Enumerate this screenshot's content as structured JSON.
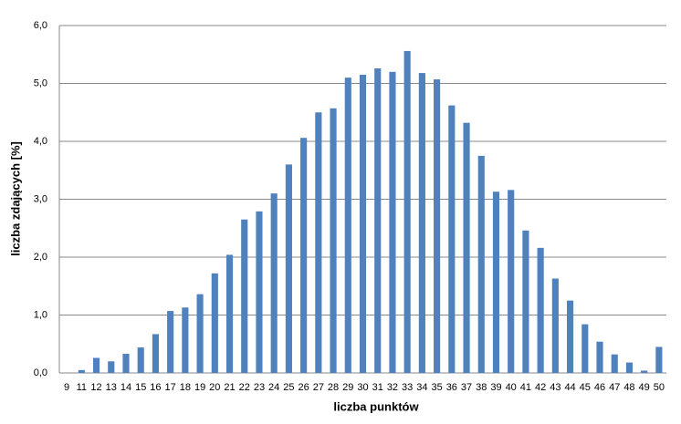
{
  "chart_data": {
    "type": "bar",
    "x_label": "liczba punktów",
    "y_label": "liczba zdających [%]",
    "categories": [
      9,
      11,
      12,
      13,
      14,
      15,
      16,
      17,
      18,
      19,
      20,
      21,
      22,
      23,
      24,
      25,
      26,
      27,
      28,
      29,
      30,
      31,
      32,
      33,
      34,
      35,
      36,
      37,
      38,
      39,
      40,
      41,
      42,
      43,
      44,
      45,
      46,
      47,
      48,
      49,
      50
    ],
    "values": [
      0,
      0.05,
      0.26,
      0.2,
      0.33,
      0.44,
      0.67,
      1.07,
      1.13,
      1.36,
      1.72,
      2.04,
      2.65,
      2.79,
      3.1,
      3.6,
      4.06,
      4.5,
      4.57,
      5.1,
      5.15,
      5.26,
      5.2,
      5.56,
      5.18,
      5.07,
      4.62,
      4.32,
      3.75,
      3.13,
      3.16,
      2.46,
      2.16,
      1.63,
      1.25,
      0.84,
      0.54,
      0.32,
      0.18,
      0.04,
      0.45
    ],
    "color": "#4f81bd",
    "ylim": [
      0,
      6
    ],
    "yticks": [
      {
        "value": 0,
        "label": "0,0"
      },
      {
        "value": 1,
        "label": "1,0"
      },
      {
        "value": 2,
        "label": "2,0"
      },
      {
        "value": 3,
        "label": "3,0"
      },
      {
        "value": 4,
        "label": "4,0"
      },
      {
        "value": 5,
        "label": "5,0"
      },
      {
        "value": 6,
        "label": "6,0"
      }
    ],
    "grid": true
  }
}
